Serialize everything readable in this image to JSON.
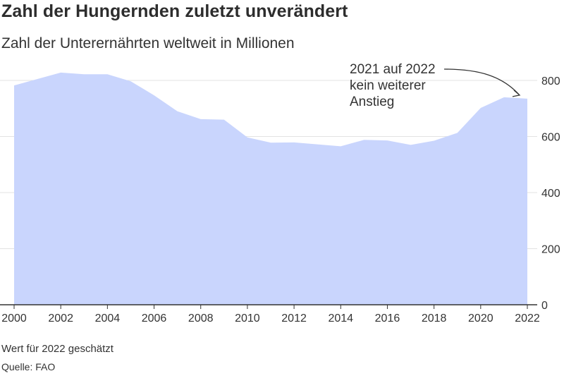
{
  "title": "Zahl der Hungernden zuletzt unverändert",
  "subtitle": "Zahl der Unterernährten weltweit in Millionen",
  "note": "Wert für 2022 geschätzt",
  "source": "Quelle: FAO",
  "colors": {
    "area": "#c9d5fd",
    "grid": "#e3e3e3",
    "axis": "#333333",
    "text": "#333333"
  },
  "chart_data": {
    "type": "area",
    "x": [
      2000,
      2001,
      2002,
      2003,
      2004,
      2005,
      2006,
      2007,
      2008,
      2009,
      2010,
      2011,
      2012,
      2013,
      2014,
      2015,
      2016,
      2017,
      2018,
      2019,
      2020,
      2021,
      2022
    ],
    "series": [
      {
        "values": [
          782,
          805,
          828,
          822,
          822,
          797,
          747,
          690,
          662,
          660,
          597,
          578,
          579,
          572,
          565,
          588,
          586,
          570,
          585,
          613,
          702,
          740,
          735
        ]
      }
    ],
    "xticks": [
      2000,
      2002,
      2004,
      2006,
      2008,
      2010,
      2012,
      2014,
      2016,
      2018,
      2020,
      2022
    ],
    "xtick_labels": [
      "2000",
      "2002",
      "2004",
      "2006",
      "2008",
      "2010",
      "2012",
      "2014",
      "2016",
      "2018",
      "2020",
      "2022"
    ],
    "yticks": [
      0,
      200,
      400,
      600,
      800
    ],
    "ytick_labels": [
      "0",
      "200",
      "400",
      "600",
      "800"
    ],
    "ylim": [
      0,
      800
    ],
    "xlim": [
      2000,
      2022
    ],
    "grid": true,
    "annotation": {
      "lines": [
        "2021 auf 2022",
        "kein weiterer",
        "Anstieg"
      ],
      "x": 2022,
      "y": 735
    }
  }
}
